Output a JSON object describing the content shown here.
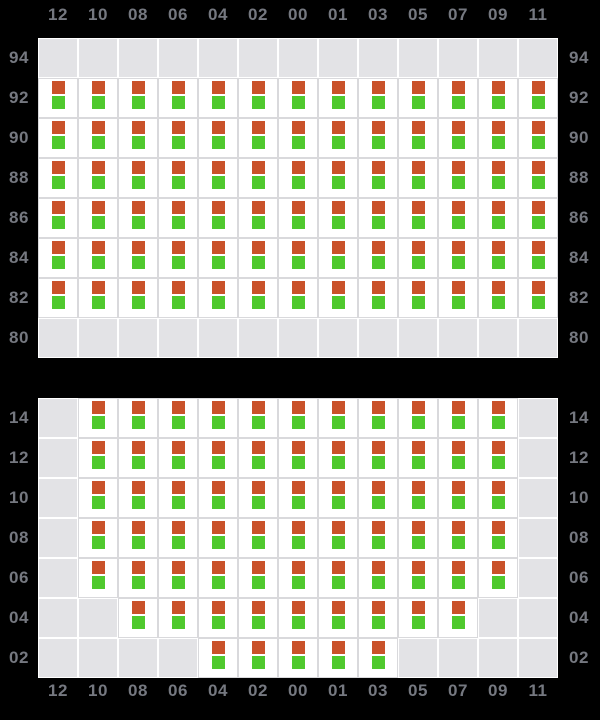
{
  "colors": {
    "background": "#000000",
    "panel": "#ffffff",
    "empty_cell": "#e3e3e6",
    "grid_line": "#d9d9dc",
    "label_text": "#757880",
    "indicator_top_square": "#c9522a",
    "indicator_bottom_square": "#4fc92e"
  },
  "column_labels": [
    "12",
    "10",
    "08",
    "06",
    "04",
    "02",
    "00",
    "01",
    "03",
    "05",
    "07",
    "09",
    "11"
  ],
  "top_panel": {
    "side_labels": [
      "94",
      "92",
      "90",
      "88",
      "86",
      "84",
      "82",
      "80"
    ],
    "rows": [
      {
        "label": "94",
        "cells": "0000000000000"
      },
      {
        "label": "92",
        "cells": "1111111111111"
      },
      {
        "label": "90",
        "cells": "1111111111111"
      },
      {
        "label": "88",
        "cells": "1111111111111"
      },
      {
        "label": "86",
        "cells": "1111111111111"
      },
      {
        "label": "84",
        "cells": "1111111111111"
      },
      {
        "label": "82",
        "cells": "1111111111111"
      },
      {
        "label": "80",
        "cells": "0000000000000"
      }
    ]
  },
  "bottom_panel": {
    "side_labels": [
      "14",
      "12",
      "10",
      "08",
      "06",
      "04",
      "02"
    ],
    "rows": [
      {
        "label": "14",
        "cells": "0111111111110"
      },
      {
        "label": "12",
        "cells": "0111111111110"
      },
      {
        "label": "10",
        "cells": "0111111111110"
      },
      {
        "label": "08",
        "cells": "0111111111110"
      },
      {
        "label": "06",
        "cells": "0111111111110"
      },
      {
        "label": "04",
        "cells": "0011111111100"
      },
      {
        "label": "02",
        "cells": "0000111110000"
      }
    ]
  }
}
